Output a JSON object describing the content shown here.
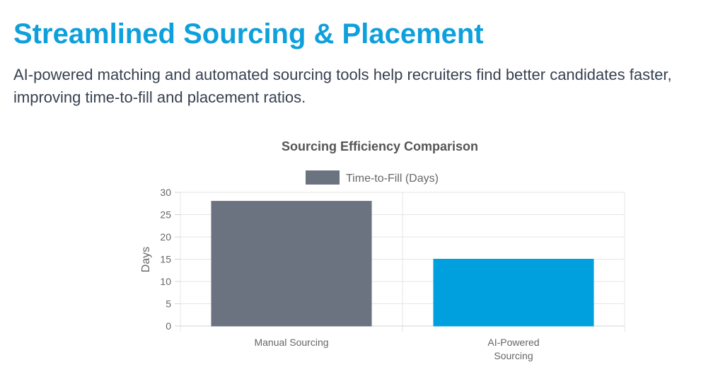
{
  "header": {
    "title": "Streamlined Sourcing & Placement",
    "subtitle": "AI-powered matching and automated sourcing tools help recruiters find better candidates faster, improving time-to-fill and placement ratios."
  },
  "chart_data": {
    "type": "bar",
    "title": "Sourcing Efficiency Comparison",
    "categories": [
      [
        "Manual Sourcing"
      ],
      [
        "AI-Powered",
        "Sourcing"
      ]
    ],
    "series": [
      {
        "name": "Time-to-Fill (Days)",
        "values": [
          28,
          15
        ],
        "colors": [
          "#6b7280",
          "#009fde"
        ]
      }
    ],
    "legend_color": "#6b7280",
    "xlabel": "",
    "ylabel": "Days",
    "ylim": [
      0,
      30
    ],
    "yticks": [
      0,
      5,
      10,
      15,
      20,
      25,
      30
    ],
    "grid": true,
    "legend_position": "top-center"
  }
}
